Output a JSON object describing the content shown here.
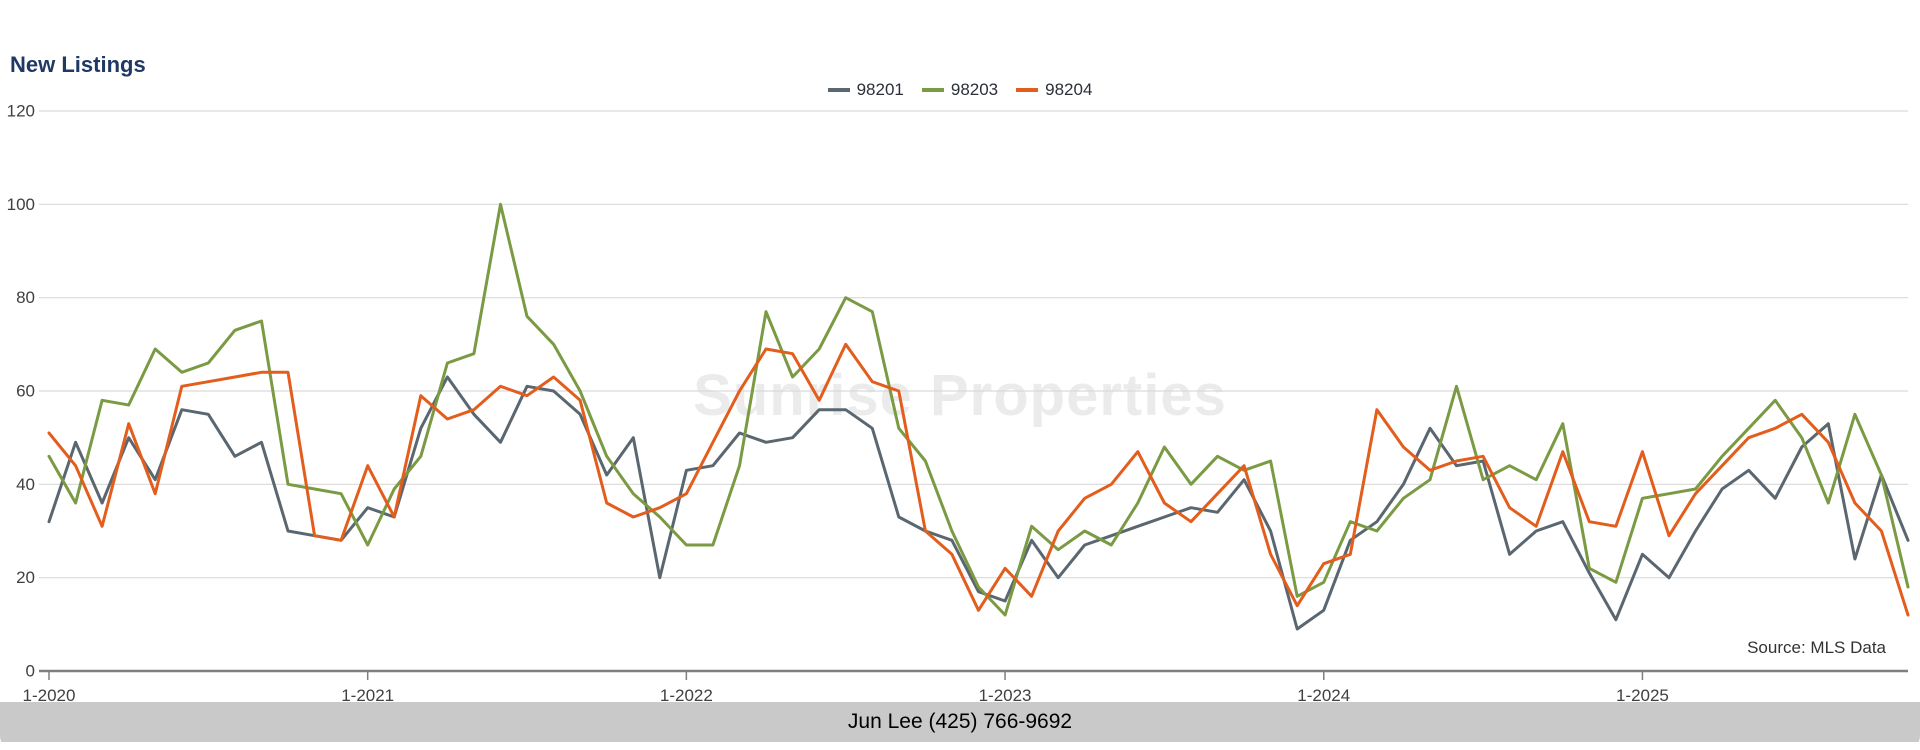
{
  "title": "New Listings",
  "watermark": "Sunrise Properties",
  "source": "Source: MLS Data",
  "footer": "Jun Lee (425) 766-9692",
  "colors": {
    "title_text": "#1f3864",
    "grid": "#d9d9d9",
    "axis": "#7f7f7f",
    "tick_label": "#404040",
    "footer_bg": "#c9c9c9"
  },
  "chart_data": {
    "type": "line",
    "title": "New Listings",
    "xlabel": "",
    "ylabel": "",
    "ylim": [
      0,
      120
    ],
    "y_ticks": [
      0,
      20,
      40,
      60,
      80,
      100,
      120
    ],
    "grid": "horizontal",
    "legend_position": "top-center",
    "x_tick_labels": [
      "1-2020",
      "1-2021",
      "1-2022",
      "1-2023",
      "1-2024",
      "1-2025"
    ],
    "x_tick_indices": [
      0,
      12,
      24,
      36,
      48,
      60
    ],
    "x": [
      "1-2020",
      "2-2020",
      "3-2020",
      "4-2020",
      "5-2020",
      "6-2020",
      "7-2020",
      "8-2020",
      "9-2020",
      "10-2020",
      "11-2020",
      "12-2020",
      "1-2021",
      "2-2021",
      "3-2021",
      "4-2021",
      "5-2021",
      "6-2021",
      "7-2021",
      "8-2021",
      "9-2021",
      "10-2021",
      "11-2021",
      "12-2021",
      "1-2022",
      "2-2022",
      "3-2022",
      "4-2022",
      "5-2022",
      "6-2022",
      "7-2022",
      "8-2022",
      "9-2022",
      "10-2022",
      "11-2022",
      "12-2022",
      "1-2023",
      "2-2023",
      "3-2023",
      "4-2023",
      "5-2023",
      "6-2023",
      "7-2023",
      "8-2023",
      "9-2023",
      "10-2023",
      "11-2023",
      "12-2023",
      "1-2024",
      "2-2024",
      "3-2024",
      "4-2024",
      "5-2024",
      "6-2024",
      "7-2024",
      "8-2024",
      "9-2024",
      "10-2024",
      "11-2024",
      "12-2024",
      "1-2025",
      "2-2025",
      "3-2025",
      "4-2025",
      "5-2025",
      "6-2025",
      "7-2025",
      "8-2025",
      "9-2025",
      "10-2025",
      "11-2025"
    ],
    "series": [
      {
        "name": "98201",
        "color": "#5b6770",
        "values": [
          32,
          49,
          36,
          50,
          41,
          56,
          55,
          46,
          49,
          30,
          29,
          28,
          35,
          33,
          52,
          63,
          55,
          49,
          61,
          60,
          55,
          42,
          50,
          20,
          43,
          44,
          51,
          49,
          50,
          56,
          56,
          52,
          33,
          30,
          28,
          17,
          15,
          28,
          20,
          27,
          29,
          31,
          33,
          35,
          34,
          41,
          30,
          9,
          13,
          28,
          32,
          40,
          52,
          44,
          45,
          25,
          30,
          32,
          21,
          11,
          25,
          20,
          30,
          39,
          43,
          37,
          48,
          53,
          24,
          42,
          28
        ]
      },
      {
        "name": "98203",
        "color": "#7a9a43",
        "values": [
          46,
          36,
          58,
          57,
          69,
          64,
          66,
          73,
          75,
          40,
          39,
          38,
          27,
          39,
          46,
          66,
          68,
          100,
          76,
          70,
          60,
          46,
          38,
          33,
          27,
          27,
          44,
          77,
          63,
          69,
          80,
          77,
          52,
          45,
          30,
          18,
          12,
          31,
          26,
          30,
          27,
          36,
          48,
          40,
          46,
          43,
          45,
          16,
          19,
          32,
          30,
          37,
          41,
          61,
          41,
          44,
          41,
          53,
          22,
          19,
          37,
          38,
          39,
          46,
          52,
          58,
          50,
          36,
          55,
          42,
          18
        ]
      },
      {
        "name": "98204",
        "color": "#e35d1d",
        "values": [
          51,
          44,
          31,
          53,
          38,
          61,
          62,
          63,
          64,
          64,
          29,
          28,
          44,
          33,
          59,
          54,
          56,
          61,
          59,
          63,
          58,
          36,
          33,
          35,
          38,
          49,
          60,
          69,
          68,
          58,
          70,
          62,
          60,
          30,
          25,
          13,
          22,
          16,
          30,
          37,
          40,
          47,
          36,
          32,
          38,
          44,
          25,
          14,
          23,
          25,
          56,
          48,
          43,
          45,
          46,
          35,
          31,
          47,
          32,
          31,
          47,
          29,
          38,
          44,
          50,
          52,
          55,
          49,
          36,
          30,
          12
        ]
      }
    ]
  }
}
